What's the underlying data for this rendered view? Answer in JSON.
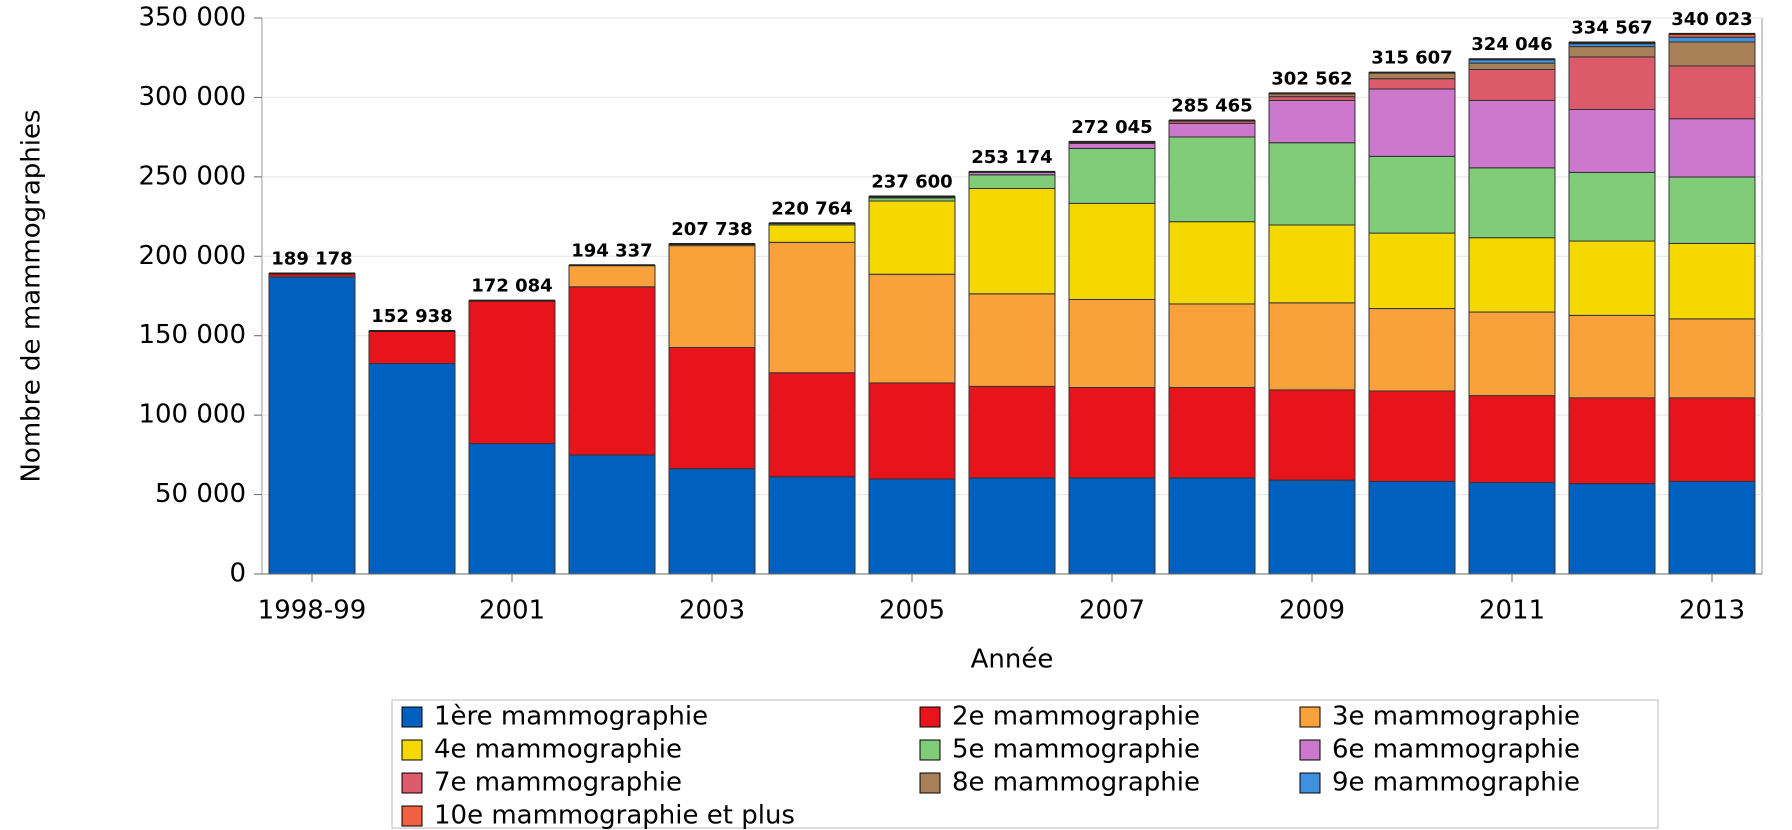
{
  "chart_data": {
    "type": "stacked_bar",
    "ylabel": "Nombre de mammographies",
    "xlabel": "Année",
    "categories": [
      "1998-99",
      null,
      "2001",
      null,
      "2003",
      null,
      "2005",
      null,
      "2007",
      null,
      "2009",
      null,
      "2011",
      null,
      "2013"
    ],
    "series": [
      {
        "name": "1ère mammographie",
        "color": "#0060c0",
        "values": [
          187000,
          132500,
          82100,
          74900,
          66300,
          61200,
          59800,
          60500,
          60500,
          60500,
          59100,
          58300,
          57600,
          56900,
          58300
        ]
      },
      {
        "name": "2e mammographie",
        "color": "#e8141c",
        "values": [
          2178,
          20438,
          89984,
          105900,
          76300,
          65500,
          60500,
          57600,
          56900,
          56900,
          56800,
          56900,
          54700,
          54000,
          52600
        ]
      },
      {
        "name": "3e mammographie",
        "color": "#f9a23c",
        "values": [
          null,
          null,
          null,
          13537,
          64100,
          82100,
          68400,
          58300,
          55400,
          52600,
          54800,
          51900,
          52600,
          51900,
          49700
        ]
      },
      {
        "name": "4e mammographie",
        "color": "#f5d800",
        "values": [
          null,
          null,
          null,
          null,
          1038,
          10900,
          46100,
          66300,
          60500,
          51800,
          49000,
          47500,
          46800,
          46800,
          47500
        ]
      },
      {
        "name": "5e mammographie",
        "color": "#80cc78",
        "values": [
          null,
          null,
          null,
          null,
          null,
          1064,
          2000,
          8600,
          34600,
          53300,
          51800,
          48300,
          44000,
          43200,
          41800
        ]
      },
      {
        "name": "6e mammographie",
        "color": "#cc78cc",
        "values": [
          null,
          null,
          null,
          null,
          null,
          null,
          800,
          1874,
          3100,
          8600,
          26600,
          42400,
          42400,
          39600,
          36700
        ]
      },
      {
        "name": "7e mammographie",
        "color": "#dc5a6a",
        "values": [
          null,
          null,
          null,
          null,
          null,
          null,
          null,
          null,
          1045,
          1765,
          2400,
          6500,
          19500,
          33100,
          33200
        ]
      },
      {
        "name": "8e mammographie",
        "color": "#a88058",
        "values": [
          null,
          null,
          null,
          null,
          null,
          null,
          null,
          null,
          null,
          null,
          2062,
          3807,
          4000,
          6500,
          15100
        ]
      },
      {
        "name": "9e mammographie",
        "color": "#4090e0",
        "values": [
          null,
          null,
          null,
          null,
          null,
          null,
          null,
          null,
          null,
          null,
          null,
          null,
          2446,
          1800,
          3000
        ]
      },
      {
        "name": "10e mammographie et plus",
        "color": "#f06040",
        "values": [
          null,
          null,
          null,
          null,
          null,
          null,
          null,
          null,
          null,
          null,
          null,
          null,
          null,
          767,
          2123
        ]
      }
    ],
    "totals": {
      "values": [
        189178,
        152938,
        172084,
        194337,
        207738,
        220764,
        237600,
        253174,
        272045,
        285465,
        302562,
        315607,
        324046,
        334567,
        340023
      ],
      "value_labels": [
        "189 178",
        "152 938",
        "172 084",
        "194 337",
        "207 738",
        "220 764",
        "237 600",
        "253 174",
        "272 045",
        "285 465",
        "302 562",
        "315 607",
        "324 046",
        "334 567",
        "340 023"
      ]
    },
    "ylim": [
      0,
      350000
    ],
    "yticks": [
      0,
      {
        "value": 50000,
        "label": "50 000"
      },
      {
        "value": 100000,
        "label": "100 000"
      },
      {
        "value": 150000,
        "label": "150 000"
      },
      {
        "value": 200000,
        "label": "200 000"
      },
      {
        "value": 250000,
        "label": "250 000"
      },
      {
        "value": 300000,
        "label": "300 000"
      },
      {
        "value": 350000,
        "label": "350 000"
      }
    ],
    "grid": true
  }
}
